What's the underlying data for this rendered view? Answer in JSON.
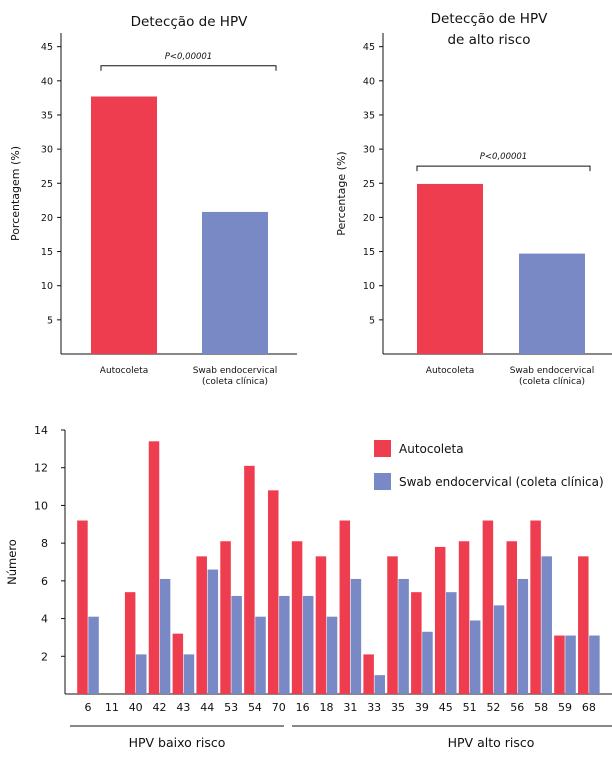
{
  "chart_data": [
    {
      "type": "bar",
      "title": "Detecção de HPV",
      "ylabel": "Porcentagem (%)",
      "xlabel": "",
      "ylim": [
        0,
        47
      ],
      "yticks": [
        5,
        10,
        15,
        20,
        25,
        30,
        35,
        40,
        45
      ],
      "grid": false,
      "categories": [
        "Autocoleta",
        "Swab endocervical\n(coleta clínica)"
      ],
      "values": [
        37.7,
        20.8
      ],
      "bar_colors": [
        "#ee3d4f",
        "#7889c6"
      ],
      "annotation": "P<0,00001"
    },
    {
      "type": "bar",
      "title": "Detecção de HPV\nde alto risco",
      "ylabel": "Percentage (%)",
      "xlabel": "",
      "ylim": [
        0,
        47
      ],
      "yticks": [
        5,
        10,
        15,
        20,
        25,
        30,
        35,
        40,
        45
      ],
      "grid": false,
      "categories": [
        "Autocoleta",
        "Swab endocervical\n(coleta clínica)"
      ],
      "values": [
        24.9,
        14.7
      ],
      "bar_colors": [
        "#ee3d4f",
        "#7889c6"
      ],
      "annotation": "P<0,00001"
    },
    {
      "type": "bar",
      "title": "",
      "ylabel": "Número",
      "xlabel": "",
      "ylim": [
        0,
        14
      ],
      "yticks": [
        2,
        4,
        6,
        8,
        10,
        12,
        14
      ],
      "grid": false,
      "legend_position": "top-right",
      "categories": [
        "6",
        "11",
        "40",
        "42",
        "43",
        "44",
        "53",
        "54",
        "70",
        "16",
        "18",
        "31",
        "33",
        "35",
        "39",
        "45",
        "51",
        "52",
        "56",
        "58",
        "59",
        "68"
      ],
      "groups": [
        {
          "label": "HPV baixo risco",
          "categories": [
            "6",
            "11",
            "40",
            "42",
            "43",
            "44",
            "53",
            "54",
            "70"
          ]
        },
        {
          "label": "HPV alto risco",
          "categories": [
            "16",
            "18",
            "31",
            "33",
            "35",
            "39",
            "45",
            "51",
            "52",
            "56",
            "58",
            "59",
            "68"
          ]
        }
      ],
      "series": [
        {
          "name": "Autocoleta",
          "color": "#ee3d4f",
          "values": [
            9.2,
            0,
            5.4,
            13.4,
            3.2,
            7.3,
            8.1,
            12.1,
            10.8,
            8.1,
            7.3,
            9.2,
            2.1,
            7.3,
            5.4,
            7.8,
            8.1,
            9.2,
            8.1,
            9.2,
            3.1,
            7.3
          ]
        },
        {
          "name": "Swab endocervical (coleta clínica)",
          "color": "#7889c6",
          "values": [
            4.1,
            0,
            2.1,
            6.1,
            2.1,
            6.6,
            5.2,
            4.1,
            5.2,
            5.2,
            4.1,
            6.1,
            1.0,
            6.1,
            3.3,
            5.4,
            3.9,
            4.7,
            6.1,
            7.3,
            3.1,
            3.1
          ]
        }
      ]
    }
  ]
}
